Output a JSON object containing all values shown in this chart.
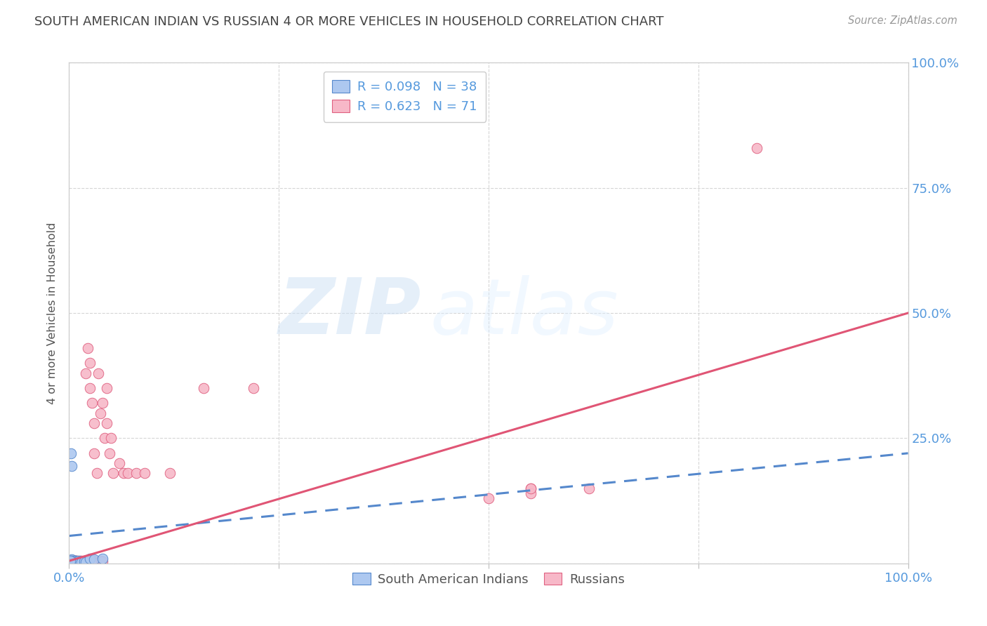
{
  "title": "SOUTH AMERICAN INDIAN VS RUSSIAN 4 OR MORE VEHICLES IN HOUSEHOLD CORRELATION CHART",
  "source": "Source: ZipAtlas.com",
  "ylabel": "4 or more Vehicles in Household",
  "watermark_zip": "ZIP",
  "watermark_atlas": "atlas",
  "legend1_label": "R = 0.098   N = 38",
  "legend2_label": "R = 0.623   N = 71",
  "legend_bottom1": "South American Indians",
  "legend_bottom2": "Russians",
  "blue_fill": "#adc8f0",
  "pink_fill": "#f7b8c8",
  "blue_edge": "#5588cc",
  "pink_edge": "#e06080",
  "blue_line_color": "#5588cc",
  "pink_line_color": "#e05575",
  "title_color": "#444444",
  "ylabel_color": "#555555",
  "tick_color": "#5599dd",
  "background_color": "#ffffff",
  "grid_color": "#cccccc",
  "blue_scatter": [
    [
      0.003,
      0.005
    ],
    [
      0.004,
      0.003
    ],
    [
      0.005,
      0.004
    ],
    [
      0.006,
      0.002
    ],
    [
      0.003,
      0.003
    ],
    [
      0.004,
      0.006
    ],
    [
      0.005,
      0.002
    ],
    [
      0.006,
      0.004
    ],
    [
      0.007,
      0.003
    ],
    [
      0.008,
      0.005
    ],
    [
      0.009,
      0.003
    ],
    [
      0.01,
      0.004
    ],
    [
      0.002,
      0.003
    ],
    [
      0.003,
      0.008
    ],
    [
      0.004,
      0.002
    ],
    [
      0.005,
      0.006
    ],
    [
      0.001,
      0.002
    ],
    [
      0.002,
      0.005
    ],
    [
      0.003,
      0.002
    ],
    [
      0.004,
      0.004
    ],
    [
      0.005,
      0.003
    ],
    [
      0.006,
      0.003
    ],
    [
      0.007,
      0.005
    ],
    [
      0.008,
      0.002
    ],
    [
      0.009,
      0.004
    ],
    [
      0.01,
      0.003
    ],
    [
      0.011,
      0.005
    ],
    [
      0.012,
      0.003
    ],
    [
      0.013,
      0.004
    ],
    [
      0.015,
      0.003
    ],
    [
      0.018,
      0.004
    ],
    [
      0.02,
      0.003
    ],
    [
      0.003,
      0.195
    ],
    [
      0.025,
      0.01
    ],
    [
      0.03,
      0.008
    ],
    [
      0.04,
      0.01
    ],
    [
      0.002,
      0.22
    ],
    [
      0.001,
      0.005
    ]
  ],
  "pink_scatter": [
    [
      0.001,
      0.003
    ],
    [
      0.002,
      0.005
    ],
    [
      0.003,
      0.004
    ],
    [
      0.004,
      0.003
    ],
    [
      0.005,
      0.006
    ],
    [
      0.006,
      0.004
    ],
    [
      0.007,
      0.003
    ],
    [
      0.008,
      0.005
    ],
    [
      0.003,
      0.002
    ],
    [
      0.004,
      0.007
    ],
    [
      0.005,
      0.003
    ],
    [
      0.006,
      0.005
    ],
    [
      0.007,
      0.004
    ],
    [
      0.008,
      0.006
    ],
    [
      0.009,
      0.003
    ],
    [
      0.01,
      0.005
    ],
    [
      0.011,
      0.004
    ],
    [
      0.012,
      0.003
    ],
    [
      0.013,
      0.005
    ],
    [
      0.015,
      0.006
    ],
    [
      0.016,
      0.004
    ],
    [
      0.018,
      0.005
    ],
    [
      0.02,
      0.004
    ],
    [
      0.022,
      0.006
    ],
    [
      0.024,
      0.005
    ],
    [
      0.026,
      0.004
    ],
    [
      0.028,
      0.003
    ],
    [
      0.03,
      0.005
    ],
    [
      0.032,
      0.004
    ],
    [
      0.035,
      0.003
    ],
    [
      0.038,
      0.005
    ],
    [
      0.04,
      0.004
    ],
    [
      0.001,
      0.002
    ],
    [
      0.002,
      0.004
    ],
    [
      0.003,
      0.006
    ],
    [
      0.004,
      0.003
    ],
    [
      0.005,
      0.005
    ],
    [
      0.006,
      0.003
    ],
    [
      0.007,
      0.004
    ],
    [
      0.008,
      0.003
    ],
    [
      0.02,
      0.38
    ],
    [
      0.022,
      0.43
    ],
    [
      0.025,
      0.4
    ],
    [
      0.025,
      0.35
    ],
    [
      0.027,
      0.32
    ],
    [
      0.03,
      0.28
    ],
    [
      0.03,
      0.22
    ],
    [
      0.033,
      0.18
    ],
    [
      0.035,
      0.38
    ],
    [
      0.037,
      0.3
    ],
    [
      0.04,
      0.32
    ],
    [
      0.042,
      0.25
    ],
    [
      0.045,
      0.28
    ],
    [
      0.048,
      0.22
    ],
    [
      0.05,
      0.25
    ],
    [
      0.052,
      0.18
    ],
    [
      0.045,
      0.35
    ],
    [
      0.06,
      0.2
    ],
    [
      0.065,
      0.18
    ],
    [
      0.07,
      0.18
    ],
    [
      0.08,
      0.18
    ],
    [
      0.09,
      0.18
    ],
    [
      0.12,
      0.18
    ],
    [
      0.82,
      0.83
    ],
    [
      0.16,
      0.35
    ],
    [
      0.22,
      0.35
    ],
    [
      0.5,
      0.13
    ],
    [
      0.55,
      0.15
    ],
    [
      0.55,
      0.14
    ],
    [
      0.62,
      0.15
    ],
    [
      0.55,
      0.15
    ]
  ],
  "blue_line_pts": [
    [
      0.0,
      0.055
    ],
    [
      1.0,
      0.22
    ]
  ],
  "pink_line_pts": [
    [
      0.0,
      0.005
    ],
    [
      1.0,
      0.5
    ]
  ],
  "xlim": [
    0.0,
    1.0
  ],
  "ylim": [
    0.0,
    1.0
  ],
  "xticks": [
    0.0,
    0.25,
    0.5,
    0.75,
    1.0
  ],
  "xticklabels": [
    "0.0%",
    "",
    "",
    "",
    "100.0%"
  ],
  "yticks": [
    0.0,
    0.25,
    0.5,
    0.75,
    1.0
  ],
  "yticklabels_right": [
    "",
    "25.0%",
    "50.0%",
    "75.0%",
    "100.0%"
  ]
}
